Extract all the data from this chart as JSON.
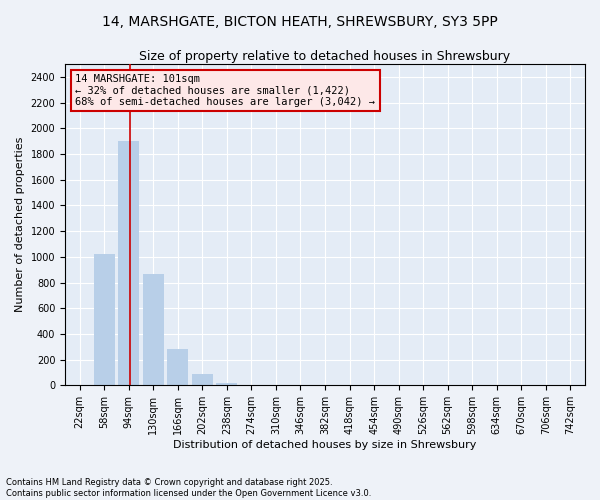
{
  "title": "14, MARSHGATE, BICTON HEATH, SHREWSBURY, SY3 5PP",
  "subtitle": "Size of property relative to detached houses in Shrewsbury",
  "xlabel": "Distribution of detached houses by size in Shrewsbury",
  "ylabel": "Number of detached properties",
  "footnote1": "Contains HM Land Registry data © Crown copyright and database right 2025.",
  "footnote2": "Contains public sector information licensed under the Open Government Licence v3.0.",
  "annotation_title": "14 MARSHGATE: 101sqm",
  "annotation_line1": "← 32% of detached houses are smaller (1,422)",
  "annotation_line2": "68% of semi-detached houses are larger (3,042) →",
  "property_size_sqm": 101,
  "property_bin_index": 2,
  "categories": [
    "22sqm",
    "58sqm",
    "94sqm",
    "130sqm",
    "166sqm",
    "202sqm",
    "238sqm",
    "274sqm",
    "310sqm",
    "346sqm",
    "382sqm",
    "418sqm",
    "454sqm",
    "490sqm",
    "526sqm",
    "562sqm",
    "598sqm",
    "634sqm",
    "670sqm",
    "706sqm",
    "742sqm"
  ],
  "values": [
    0,
    1020,
    1900,
    870,
    280,
    90,
    20,
    5,
    2,
    1,
    0,
    0,
    0,
    0,
    0,
    0,
    0,
    0,
    0,
    0,
    0
  ],
  "bar_color": "#b8cfe8",
  "vline_color": "#cc0000",
  "ylim": [
    0,
    2500
  ],
  "yticks": [
    0,
    200,
    400,
    600,
    800,
    1000,
    1200,
    1400,
    1600,
    1800,
    2000,
    2200,
    2400
  ],
  "background_color": "#eef2f8",
  "plot_background": "#e4ecf6",
  "grid_color": "#ffffff",
  "annotation_box_facecolor": "#fde8e8",
  "annotation_border_color": "#cc0000",
  "title_fontsize": 10,
  "subtitle_fontsize": 9,
  "axis_label_fontsize": 8,
  "tick_fontsize": 7,
  "annotation_fontsize": 7.5
}
